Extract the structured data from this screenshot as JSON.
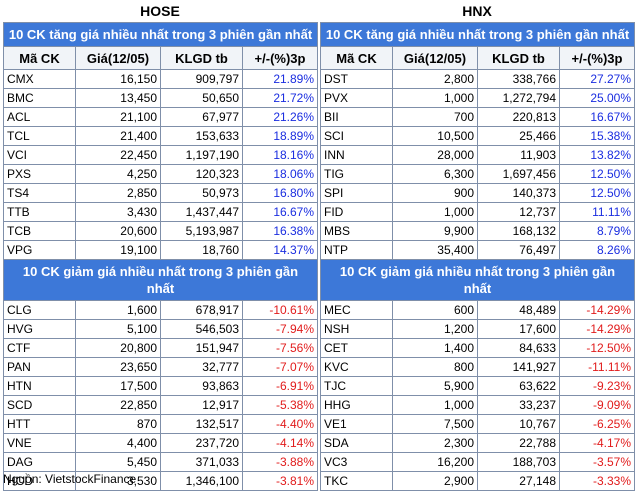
{
  "exchanges": {
    "hose": "HOSE",
    "hnx": "HNX"
  },
  "columns": {
    "symbol": "Mã CK",
    "price": "Giá(12/05)",
    "volume": "KLGD tb",
    "change": "+/-(%)3p"
  },
  "sections": {
    "gainers": "10 CK tăng giá nhiều nhất trong 3 phiên gần nhất",
    "losers": "10 CK giảm giá nhiều nhất trong 3 phiên gần nhất"
  },
  "hose_gainers": [
    [
      "CMX",
      "16,150",
      "909,797",
      "21.89%"
    ],
    [
      "BMC",
      "13,450",
      "50,650",
      "21.72%"
    ],
    [
      "ACL",
      "21,100",
      "67,977",
      "21.26%"
    ],
    [
      "TCL",
      "21,400",
      "153,633",
      "18.89%"
    ],
    [
      "VCI",
      "22,450",
      "1,197,190",
      "18.16%"
    ],
    [
      "PXS",
      "4,250",
      "120,323",
      "18.06%"
    ],
    [
      "TS4",
      "2,850",
      "50,973",
      "16.80%"
    ],
    [
      "TTB",
      "3,430",
      "1,437,447",
      "16.67%"
    ],
    [
      "TCB",
      "20,600",
      "5,193,987",
      "16.38%"
    ],
    [
      "VPG",
      "19,100",
      "18,760",
      "14.37%"
    ]
  ],
  "hnx_gainers": [
    [
      "DST",
      "2,800",
      "338,766",
      "27.27%"
    ],
    [
      "PVX",
      "1,000",
      "1,272,794",
      "25.00%"
    ],
    [
      "BII",
      "700",
      "220,813",
      "16.67%"
    ],
    [
      "SCI",
      "10,500",
      "25,466",
      "15.38%"
    ],
    [
      "INN",
      "28,000",
      "11,903",
      "13.82%"
    ],
    [
      "TIG",
      "6,300",
      "1,697,456",
      "12.50%"
    ],
    [
      "SPI",
      "900",
      "140,373",
      "12.50%"
    ],
    [
      "FID",
      "1,000",
      "12,737",
      "11.11%"
    ],
    [
      "MBS",
      "9,900",
      "168,132",
      "8.79%"
    ],
    [
      "NTP",
      "35,400",
      "76,497",
      "8.26%"
    ]
  ],
  "hose_losers": [
    [
      "CLG",
      "1,600",
      "678,917",
      "-10.61%"
    ],
    [
      "HVG",
      "5,100",
      "546,503",
      "-7.94%"
    ],
    [
      "CTF",
      "20,800",
      "151,947",
      "-7.56%"
    ],
    [
      "PAN",
      "23,650",
      "32,777",
      "-7.07%"
    ],
    [
      "HTN",
      "17,500",
      "93,863",
      "-6.91%"
    ],
    [
      "SCD",
      "22,850",
      "12,917",
      "-5.38%"
    ],
    [
      "HTT",
      "870",
      "132,517",
      "-4.40%"
    ],
    [
      "VNE",
      "4,400",
      "237,720",
      "-4.14%"
    ],
    [
      "DAG",
      "5,450",
      "371,033",
      "-3.88%"
    ],
    [
      "HCD",
      "3,530",
      "1,346,100",
      "-3.81%"
    ]
  ],
  "hnx_losers": [
    [
      "MEC",
      "600",
      "48,489",
      "-14.29%"
    ],
    [
      "NSH",
      "1,200",
      "17,600",
      "-14.29%"
    ],
    [
      "CET",
      "1,400",
      "84,633",
      "-12.50%"
    ],
    [
      "KVC",
      "800",
      "141,927",
      "-11.11%"
    ],
    [
      "TJC",
      "5,900",
      "63,622",
      "-9.23%"
    ],
    [
      "HHG",
      "1,000",
      "33,237",
      "-9.09%"
    ],
    [
      "VE1",
      "7,500",
      "10,767",
      "-6.25%"
    ],
    [
      "SDA",
      "2,300",
      "22,788",
      "-4.17%"
    ],
    [
      "VC3",
      "16,200",
      "188,703",
      "-3.57%"
    ],
    [
      "TKC",
      "2,900",
      "27,148",
      "-3.33%"
    ]
  ],
  "source": "Nguồn: VietstockFinance",
  "colors": {
    "header_bg": "#3d78d8",
    "up": "#1a2de0",
    "down": "#e11b1b",
    "border": "#7f8fa9"
  }
}
